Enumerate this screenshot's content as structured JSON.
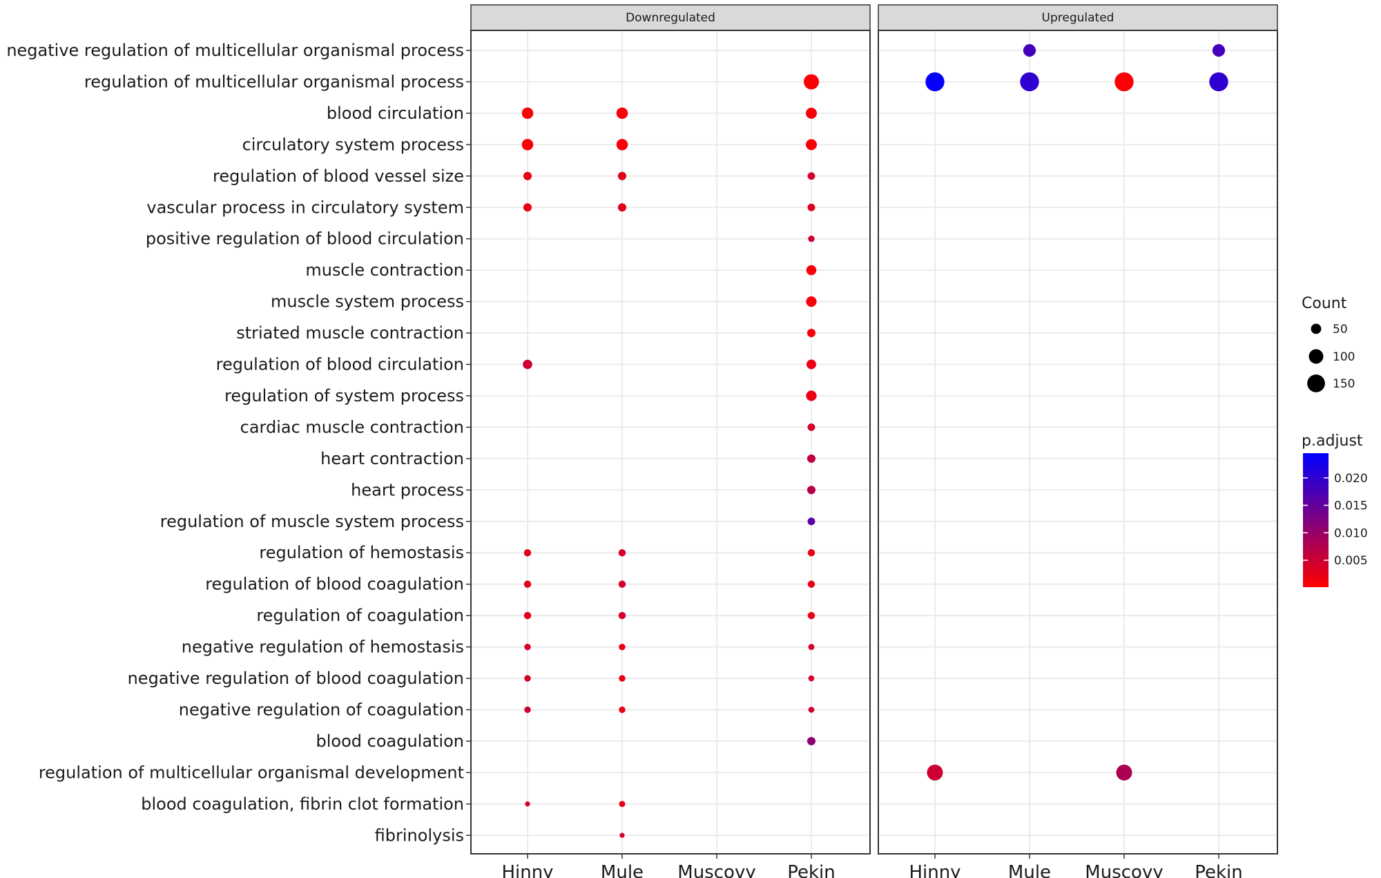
{
  "chart_data": {
    "type": "scatter",
    "facets": [
      "Downregulated",
      "Upregulated"
    ],
    "groups": [
      "Hinny",
      "Mule",
      "Muscovy",
      "Pekin"
    ],
    "terms": [
      "negative regulation of multicellular organismal process",
      "regulation of multicellular organismal process",
      "blood circulation",
      "circulatory system process",
      "regulation of blood vessel size",
      "vascular process in circulatory system",
      "positive regulation of blood circulation",
      "muscle contraction",
      "muscle system process",
      "striated muscle contraction",
      "regulation of blood circulation",
      "regulation of system process",
      "cardiac muscle contraction",
      "heart contraction",
      "heart process",
      "regulation of muscle system process",
      "regulation of hemostasis",
      "regulation of blood coagulation",
      "regulation of coagulation",
      "negative regulation of hemostasis",
      "negative regulation of blood coagulation",
      "negative regulation of coagulation",
      "blood coagulation",
      "regulation of multicellular organismal development",
      "blood coagulation, fibrin clot formation",
      "fibrinolysis"
    ],
    "points": [
      {
        "facet": "Downregulated",
        "group": "Pekin",
        "term": "regulation of multicellular organismal process",
        "count": 110,
        "p_adjust": 0.0005
      },
      {
        "facet": "Downregulated",
        "group": "Hinny",
        "term": "blood circulation",
        "count": 62,
        "p_adjust": 0.0005
      },
      {
        "facet": "Downregulated",
        "group": "Mule",
        "term": "blood circulation",
        "count": 62,
        "p_adjust": 0.0008
      },
      {
        "facet": "Downregulated",
        "group": "Pekin",
        "term": "blood circulation",
        "count": 58,
        "p_adjust": 0.0008
      },
      {
        "facet": "Downregulated",
        "group": "Hinny",
        "term": "circulatory system process",
        "count": 62,
        "p_adjust": 0.0005
      },
      {
        "facet": "Downregulated",
        "group": "Mule",
        "term": "circulatory system process",
        "count": 62,
        "p_adjust": 0.0008
      },
      {
        "facet": "Downregulated",
        "group": "Pekin",
        "term": "circulatory system process",
        "count": 58,
        "p_adjust": 0.0008
      },
      {
        "facet": "Downregulated",
        "group": "Hinny",
        "term": "regulation of blood vessel size",
        "count": 33,
        "p_adjust": 0.002
      },
      {
        "facet": "Downregulated",
        "group": "Mule",
        "term": "regulation of blood vessel size",
        "count": 33,
        "p_adjust": 0.003
      },
      {
        "facet": "Downregulated",
        "group": "Pekin",
        "term": "regulation of blood vessel size",
        "count": 27,
        "p_adjust": 0.004
      },
      {
        "facet": "Downregulated",
        "group": "Hinny",
        "term": "vascular process in circulatory system",
        "count": 33,
        "p_adjust": 0.002
      },
      {
        "facet": "Downregulated",
        "group": "Mule",
        "term": "vascular process in circulatory system",
        "count": 33,
        "p_adjust": 0.003
      },
      {
        "facet": "Downregulated",
        "group": "Pekin",
        "term": "vascular process in circulatory system",
        "count": 27,
        "p_adjust": 0.003
      },
      {
        "facet": "Downregulated",
        "group": "Pekin",
        "term": "positive regulation of blood circulation",
        "count": 20,
        "p_adjust": 0.005
      },
      {
        "facet": "Downregulated",
        "group": "Pekin",
        "term": "muscle contraction",
        "count": 48,
        "p_adjust": 0.0008
      },
      {
        "facet": "Downregulated",
        "group": "Pekin",
        "term": "muscle system process",
        "count": 52,
        "p_adjust": 0.0008
      },
      {
        "facet": "Downregulated",
        "group": "Pekin",
        "term": "striated muscle contraction",
        "count": 33,
        "p_adjust": 0.0008
      },
      {
        "facet": "Downregulated",
        "group": "Hinny",
        "term": "regulation of blood circulation",
        "count": 42,
        "p_adjust": 0.005
      },
      {
        "facet": "Downregulated",
        "group": "Pekin",
        "term": "regulation of blood circulation",
        "count": 44,
        "p_adjust": 0.002
      },
      {
        "facet": "Downregulated",
        "group": "Pekin",
        "term": "regulation of system process",
        "count": 52,
        "p_adjust": 0.002
      },
      {
        "facet": "Downregulated",
        "group": "Pekin",
        "term": "cardiac muscle contraction",
        "count": 27,
        "p_adjust": 0.004
      },
      {
        "facet": "Downregulated",
        "group": "Pekin",
        "term": "heart contraction",
        "count": 33,
        "p_adjust": 0.006
      },
      {
        "facet": "Downregulated",
        "group": "Pekin",
        "term": "heart process",
        "count": 33,
        "p_adjust": 0.007
      },
      {
        "facet": "Downregulated",
        "group": "Pekin",
        "term": "regulation of muscle system process",
        "count": 27,
        "p_adjust": 0.016
      },
      {
        "facet": "Downregulated",
        "group": "Hinny",
        "term": "regulation of hemostasis",
        "count": 25,
        "p_adjust": 0.003
      },
      {
        "facet": "Downregulated",
        "group": "Mule",
        "term": "regulation of hemostasis",
        "count": 25,
        "p_adjust": 0.004
      },
      {
        "facet": "Downregulated",
        "group": "Pekin",
        "term": "regulation of hemostasis",
        "count": 25,
        "p_adjust": 0.002
      },
      {
        "facet": "Downregulated",
        "group": "Hinny",
        "term": "regulation of blood coagulation",
        "count": 25,
        "p_adjust": 0.003
      },
      {
        "facet": "Downregulated",
        "group": "Mule",
        "term": "regulation of blood coagulation",
        "count": 25,
        "p_adjust": 0.004
      },
      {
        "facet": "Downregulated",
        "group": "Pekin",
        "term": "regulation of blood coagulation",
        "count": 25,
        "p_adjust": 0.002
      },
      {
        "facet": "Downregulated",
        "group": "Hinny",
        "term": "regulation of coagulation",
        "count": 25,
        "p_adjust": 0.003
      },
      {
        "facet": "Downregulated",
        "group": "Mule",
        "term": "regulation of coagulation",
        "count": 25,
        "p_adjust": 0.004
      },
      {
        "facet": "Downregulated",
        "group": "Pekin",
        "term": "regulation of coagulation",
        "count": 25,
        "p_adjust": 0.002
      },
      {
        "facet": "Downregulated",
        "group": "Hinny",
        "term": "negative regulation of hemostasis",
        "count": 20,
        "p_adjust": 0.004
      },
      {
        "facet": "Downregulated",
        "group": "Mule",
        "term": "negative regulation of hemostasis",
        "count": 20,
        "p_adjust": 0.002
      },
      {
        "facet": "Downregulated",
        "group": "Pekin",
        "term": "negative regulation of hemostasis",
        "count": 18,
        "p_adjust": 0.004
      },
      {
        "facet": "Downregulated",
        "group": "Hinny",
        "term": "negative regulation of blood coagulation",
        "count": 20,
        "p_adjust": 0.004
      },
      {
        "facet": "Downregulated",
        "group": "Mule",
        "term": "negative regulation of blood coagulation",
        "count": 20,
        "p_adjust": 0.002
      },
      {
        "facet": "Downregulated",
        "group": "Pekin",
        "term": "negative regulation of blood coagulation",
        "count": 17,
        "p_adjust": 0.004
      },
      {
        "facet": "Downregulated",
        "group": "Hinny",
        "term": "negative regulation of coagulation",
        "count": 20,
        "p_adjust": 0.005
      },
      {
        "facet": "Downregulated",
        "group": "Mule",
        "term": "negative regulation of coagulation",
        "count": 20,
        "p_adjust": 0.002
      },
      {
        "facet": "Downregulated",
        "group": "Pekin",
        "term": "negative regulation of coagulation",
        "count": 17,
        "p_adjust": 0.004
      },
      {
        "facet": "Downregulated",
        "group": "Pekin",
        "term": "blood coagulation",
        "count": 33,
        "p_adjust": 0.011
      },
      {
        "facet": "Downregulated",
        "group": "Hinny",
        "term": "blood coagulation, fibrin clot formation",
        "count": 12,
        "p_adjust": 0.004
      },
      {
        "facet": "Downregulated",
        "group": "Mule",
        "term": "blood coagulation, fibrin clot formation",
        "count": 18,
        "p_adjust": 0.002
      },
      {
        "facet": "Downregulated",
        "group": "Mule",
        "term": "fibrinolysis",
        "count": 12,
        "p_adjust": 0.004
      },
      {
        "facet": "Upregulated",
        "group": "Mule",
        "term": "negative regulation of multicellular organismal process",
        "count": 75,
        "p_adjust": 0.018
      },
      {
        "facet": "Upregulated",
        "group": "Pekin",
        "term": "negative regulation of multicellular organismal process",
        "count": 75,
        "p_adjust": 0.018
      },
      {
        "facet": "Upregulated",
        "group": "Hinny",
        "term": "regulation of multicellular organismal process",
        "count": 170,
        "p_adjust": 0.024
      },
      {
        "facet": "Upregulated",
        "group": "Mule",
        "term": "regulation of multicellular organismal process",
        "count": 170,
        "p_adjust": 0.02
      },
      {
        "facet": "Upregulated",
        "group": "Muscovy",
        "term": "regulation of multicellular organismal process",
        "count": 170,
        "p_adjust": 0.0005
      },
      {
        "facet": "Upregulated",
        "group": "Pekin",
        "term": "regulation of multicellular organismal process",
        "count": 170,
        "p_adjust": 0.02
      },
      {
        "facet": "Upregulated",
        "group": "Hinny",
        "term": "regulation of multicellular organismal development",
        "count": 120,
        "p_adjust": 0.005
      },
      {
        "facet": "Upregulated",
        "group": "Muscovy",
        "term": "regulation of multicellular organismal development",
        "count": 120,
        "p_adjust": 0.008
      }
    ],
    "size_legend": {
      "title": "Count",
      "breaks": [
        50,
        100,
        150
      ]
    },
    "color_legend": {
      "title": "p.adjust",
      "breaks": [
        0.02,
        0.015,
        0.01,
        0.005
      ],
      "break_labels": [
        "0.020",
        "0.015",
        "0.010",
        "0.005"
      ],
      "limits": [
        0.0001,
        0.0245
      ],
      "low_color": "#ff0000",
      "high_color": "#0000ff"
    },
    "colors": {
      "panel_border": "#333333",
      "strip_fill": "#d9d9d9",
      "grid": "#ebebeb",
      "text": "#1a1a1a"
    }
  }
}
